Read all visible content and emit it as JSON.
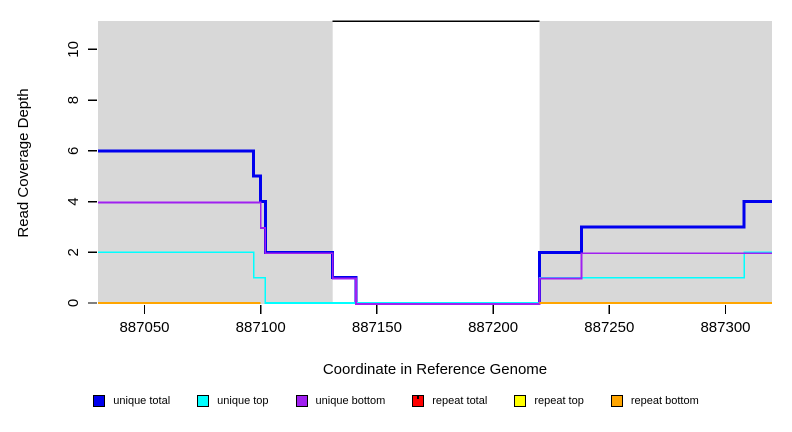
{
  "chart_data": {
    "type": "line",
    "subtype": "step",
    "title": "",
    "xlabel": "Coordinate in Reference Genome",
    "ylabel": "Read Coverage Depth",
    "xlim": [
      887030,
      887320
    ],
    "ylim": [
      0,
      11.12
    ],
    "x_ticks": [
      887050,
      887100,
      887150,
      887200,
      887250,
      887300
    ],
    "y_ticks": [
      0,
      2,
      4,
      6,
      8,
      10
    ],
    "grid": false,
    "legend_position": "bottom",
    "background_color": "#ffffff",
    "shaded_regions": [
      {
        "name": "repeat-region-left",
        "x0": 887030,
        "x1": 887131,
        "color": "#d8d8d8"
      },
      {
        "name": "repeat-region-right",
        "x0": 887220,
        "x1": 887320,
        "color": "#d8d8d8"
      }
    ],
    "top_segment": {
      "x0": 887131,
      "x1": 887220,
      "y": 11.12,
      "color": "#000000"
    },
    "series": [
      {
        "name": "unique total",
        "color": "#0000ee",
        "width": 3,
        "points": [
          [
            887030,
            6
          ],
          [
            887097,
            6
          ],
          [
            887097,
            5
          ],
          [
            887100,
            5
          ],
          [
            887100,
            4
          ],
          [
            887102,
            4
          ],
          [
            887102,
            2
          ],
          [
            887131,
            2
          ],
          [
            887131,
            1
          ],
          [
            887141,
            1
          ],
          [
            887141,
            0
          ],
          null,
          [
            887220,
            0
          ],
          [
            887220,
            2
          ],
          [
            887238,
            2
          ],
          [
            887238,
            3
          ],
          [
            887308,
            3
          ],
          [
            887308,
            4
          ],
          [
            887320,
            4
          ]
        ]
      },
      {
        "name": "unique top",
        "color": "#00ffff",
        "width": 1.6,
        "points": [
          [
            887030,
            2
          ],
          [
            887097,
            2
          ],
          [
            887097,
            1
          ],
          [
            887102,
            1
          ],
          [
            887102,
            0
          ],
          [
            887220,
            0
          ],
          [
            887220,
            1
          ],
          [
            887308,
            1
          ],
          [
            887308,
            2
          ],
          [
            887320,
            2
          ]
        ]
      },
      {
        "name": "unique bottom",
        "color": "#a020f0",
        "width": 1.8,
        "offset_y": 1,
        "points": [
          [
            887030,
            4
          ],
          [
            887100,
            4
          ],
          [
            887100,
            3
          ],
          [
            887102,
            3
          ],
          [
            887102,
            2
          ],
          [
            887131,
            2
          ],
          [
            887131,
            1
          ],
          [
            887141,
            1
          ],
          [
            887141,
            0
          ],
          [
            887220,
            0
          ],
          [
            887220,
            1
          ],
          [
            887238,
            1
          ],
          [
            887238,
            2
          ],
          [
            887320,
            2
          ]
        ]
      },
      {
        "name": "repeat total",
        "color": "#ff0000",
        "width": 1,
        "points": [
          [
            887030,
            0
          ],
          [
            887100,
            0
          ],
          null,
          [
            887220,
            0
          ],
          [
            887320,
            0
          ]
        ]
      },
      {
        "name": "repeat top",
        "color": "#ffff00",
        "width": 1,
        "points": [
          [
            887030,
            0
          ],
          [
            887100,
            0
          ],
          null,
          [
            887220,
            0
          ],
          [
            887320,
            0
          ]
        ]
      },
      {
        "name": "repeat bottom",
        "color": "#ffa500",
        "width": 2,
        "points": [
          [
            887030,
            0
          ],
          [
            887100,
            0
          ],
          null,
          [
            887220,
            0
          ],
          [
            887320,
            0
          ]
        ]
      }
    ],
    "legend": [
      {
        "label": "unique total",
        "color": "#0000ee"
      },
      {
        "label": "unique top",
        "color": "#00ffff"
      },
      {
        "label": "unique bottom",
        "color": "#a020f0"
      },
      {
        "label": "repeat total",
        "color": "#ff0000"
      },
      {
        "label": "repeat top",
        "color": "#ffff00"
      },
      {
        "label": "repeat bottom",
        "color": "#ffa500"
      }
    ]
  }
}
